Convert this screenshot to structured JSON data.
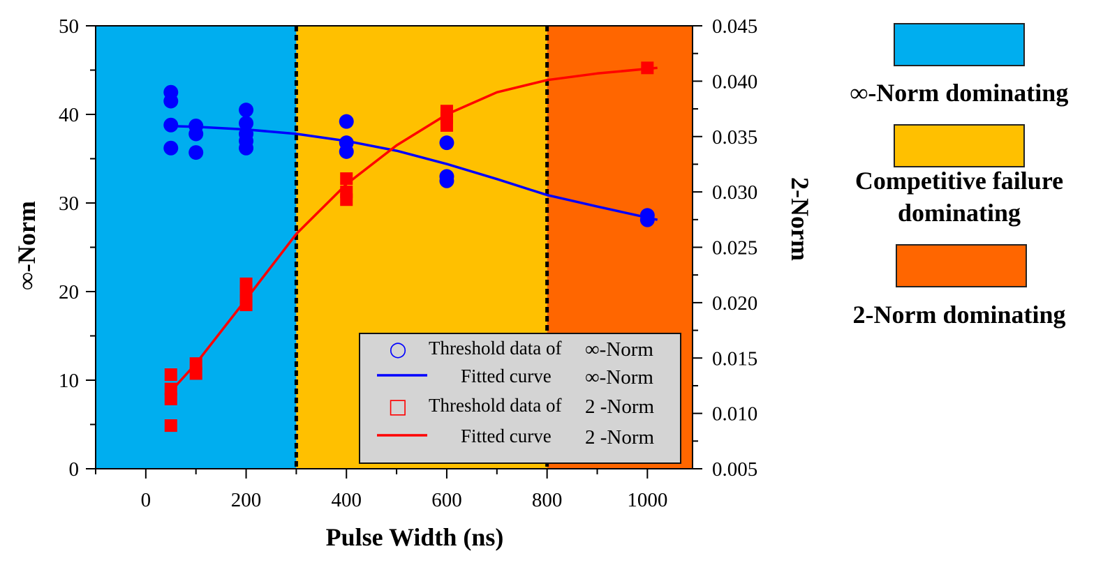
{
  "chart_data": {
    "type": "scatter",
    "xlabel": "Pulse Width (ns)",
    "ylabel_left": "∞-Norm",
    "ylabel_right": "2-Norm",
    "xlim": [
      -100,
      1090
    ],
    "ylim_left": [
      0,
      50
    ],
    "ylim_right": [
      0.005,
      0.045
    ],
    "x_ticks": [
      0,
      200,
      400,
      600,
      800,
      1000
    ],
    "y_left_ticks": [
      0,
      10,
      20,
      30,
      40,
      50
    ],
    "y_right_ticks": [
      "0.005",
      "0.010",
      "0.015",
      "0.020",
      "0.025",
      "0.030",
      "0.035",
      "0.040",
      "0.045"
    ],
    "dividers": [
      300,
      800
    ],
    "regions": [
      {
        "name": "∞-Norm dominating",
        "from": -100,
        "to": 300,
        "color": "#00AEEF"
      },
      {
        "name": "Competitive failure dominating",
        "from": 300,
        "to": 800,
        "color": "#FFC000"
      },
      {
        "name": "2-Norm dominating",
        "from": 800,
        "to": 1090,
        "color": "#FF6600"
      }
    ],
    "series": [
      {
        "name": "Threshold data of ∞-Norm",
        "axis": "left",
        "kind": "points",
        "marker": "circle",
        "color": "#0000FF",
        "points": [
          [
            50,
            42.5
          ],
          [
            50,
            41.5
          ],
          [
            50,
            38.8
          ],
          [
            50,
            36.2
          ],
          [
            100,
            38.7
          ],
          [
            100,
            37.8
          ],
          [
            100,
            35.7
          ],
          [
            200,
            40.5
          ],
          [
            200,
            39
          ],
          [
            200,
            37.8
          ],
          [
            200,
            37
          ],
          [
            200,
            36.2
          ],
          [
            400,
            39.2
          ],
          [
            400,
            36.8
          ],
          [
            400,
            35.8
          ],
          [
            600,
            36.8
          ],
          [
            600,
            33
          ],
          [
            600,
            32.5
          ],
          [
            1000,
            28.6
          ],
          [
            1000,
            28.1
          ]
        ]
      },
      {
        "name": "Fitted curve ∞-Norm",
        "axis": "left",
        "kind": "line",
        "color": "#0000FF",
        "points": [
          [
            40,
            38.7
          ],
          [
            100,
            38.6
          ],
          [
            200,
            38.3
          ],
          [
            300,
            37.8
          ],
          [
            400,
            37
          ],
          [
            500,
            35.9
          ],
          [
            600,
            34.4
          ],
          [
            700,
            32.7
          ],
          [
            800,
            30.9
          ],
          [
            900,
            29.6
          ],
          [
            1020,
            28.1
          ]
        ]
      },
      {
        "name": "Threshold data of 2 -Norm",
        "axis": "right",
        "kind": "points",
        "marker": "square",
        "color": "#FF0000",
        "points": [
          [
            50,
            0.0135
          ],
          [
            50,
            0.0122
          ],
          [
            50,
            0.0113
          ],
          [
            50,
            0.0089
          ],
          [
            100,
            0.0145
          ],
          [
            100,
            0.0136
          ],
          [
            200,
            0.0217
          ],
          [
            200,
            0.021
          ],
          [
            200,
            0.0202
          ],
          [
            200,
            0.0198
          ],
          [
            400,
            0.0312
          ],
          [
            400,
            0.03
          ],
          [
            400,
            0.0293
          ],
          [
            600,
            0.0373
          ],
          [
            600,
            0.0367
          ],
          [
            600,
            0.036
          ],
          [
            1000,
            0.0412
          ]
        ]
      },
      {
        "name": "Fitted curve 2 -Norm",
        "axis": "right",
        "kind": "line",
        "color": "#FF0000",
        "points": [
          [
            40,
            0.0115
          ],
          [
            100,
            0.0145
          ],
          [
            200,
            0.0203
          ],
          [
            300,
            0.0262
          ],
          [
            400,
            0.0307
          ],
          [
            500,
            0.0342
          ],
          [
            600,
            0.037
          ],
          [
            700,
            0.039
          ],
          [
            800,
            0.0401
          ],
          [
            900,
            0.0407
          ],
          [
            1020,
            0.0412
          ]
        ]
      }
    ],
    "legend": {
      "position": "lower-right",
      "entries": [
        {
          "label": "Threshold data of",
          "math": "∞-Norm",
          "symbol": "○",
          "color": "#0000FF"
        },
        {
          "label": "Fitted curve",
          "math": "∞-Norm",
          "symbol": "line",
          "color": "#0000FF"
        },
        {
          "label": "Threshold data of",
          "math": "2 -Norm",
          "symbol": "□",
          "color": "#FF0000"
        },
        {
          "label": "Fitted curve",
          "math": "2 -Norm",
          "symbol": "line",
          "color": "#FF0000"
        }
      ]
    },
    "region_legend": {
      "position": "right",
      "items": [
        {
          "lines": [
            "∞-Norm dominating"
          ],
          "color": "#00AEEF"
        },
        {
          "lines": [
            "Competitive failure",
            "dominating"
          ],
          "color": "#FFC000"
        },
        {
          "lines": [
            "2-Norm dominating"
          ],
          "color": "#FF6600"
        }
      ]
    }
  }
}
